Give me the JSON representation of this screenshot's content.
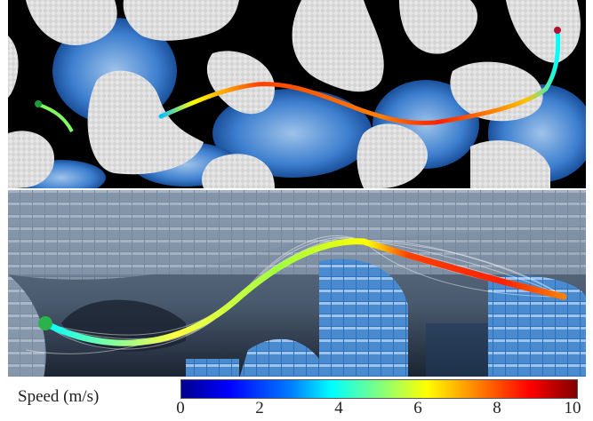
{
  "legend": {
    "label": "Speed (m/s)",
    "ticks": [
      "0",
      "2",
      "4",
      "6",
      "8",
      "10"
    ]
  },
  "colors": {
    "background": "#000000",
    "obstacle_light": "#d9d9d9",
    "obstacle_blue": "#3a78c8",
    "path_low": "#0000ff",
    "path_high": "#ff0000"
  }
}
